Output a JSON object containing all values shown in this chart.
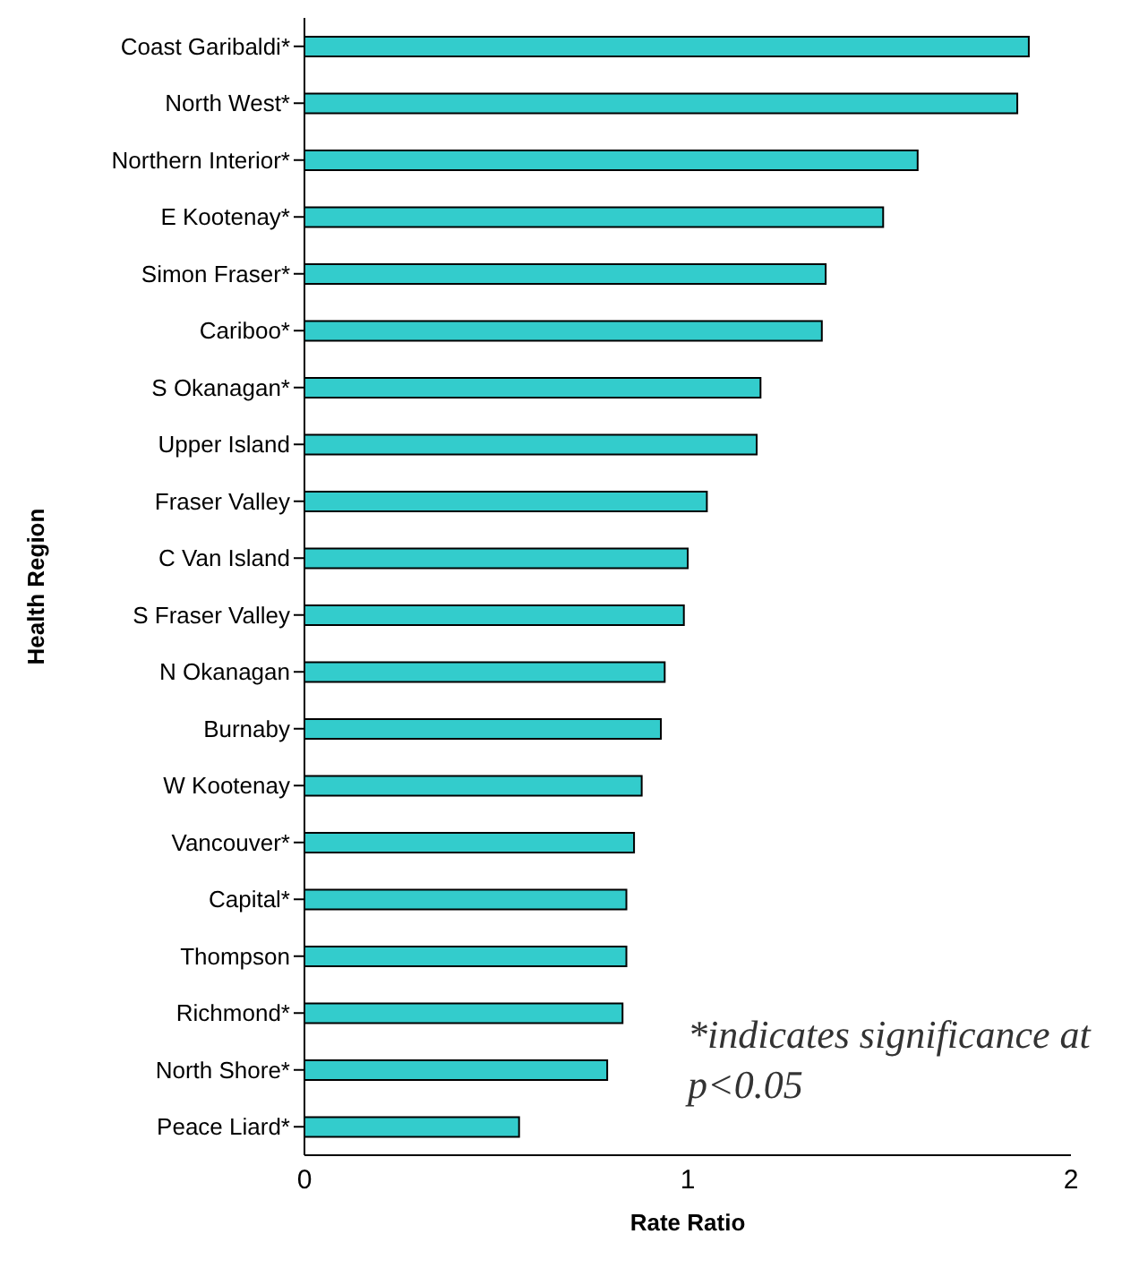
{
  "chart_data": {
    "type": "bar",
    "orientation": "horizontal",
    "xlabel": "Rate Ratio",
    "ylabel": "Health Region",
    "categories": [
      "Coast Garibaldi*",
      "North West*",
      "Northern Interior*",
      "E Kootenay*",
      "Simon Fraser*",
      "Cariboo*",
      "S Okanagan*",
      "Upper Island",
      "Fraser Valley",
      "C Van Island",
      "S Fraser Valley",
      "N Okanagan",
      "Burnaby",
      "W Kootenay",
      "Vancouver*",
      "Capital*",
      "Thompson",
      "Richmond*",
      "North Shore*",
      "Peace Liard*"
    ],
    "values": [
      1.89,
      1.86,
      1.6,
      1.51,
      1.36,
      1.35,
      1.19,
      1.18,
      1.05,
      1.0,
      0.99,
      0.94,
      0.93,
      0.88,
      0.86,
      0.84,
      0.84,
      0.83,
      0.79,
      0.56
    ],
    "color": "#33cccc",
    "xlim": [
      0,
      2
    ],
    "xticks": [
      0,
      1,
      2
    ],
    "annotations": [
      "*indicates significance at p<0.05"
    ]
  }
}
